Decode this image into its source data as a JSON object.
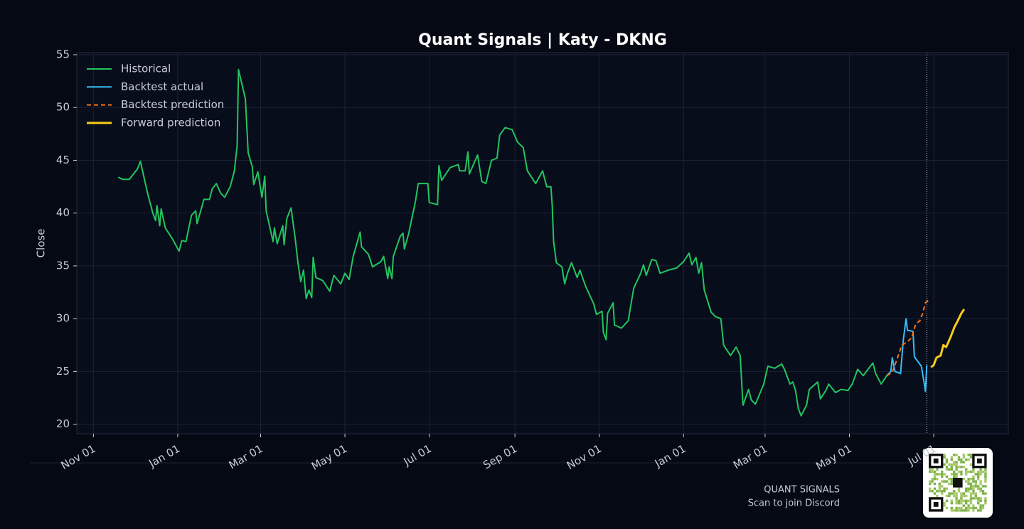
{
  "chart_data": {
    "type": "line",
    "title": "Quant Signals | Katy - DKNG",
    "y_label": "Close",
    "xlim": [
      -12,
      662
    ],
    "ylim": [
      19.1,
      55.2
    ],
    "xticks": [
      {
        "value": 0,
        "label": "Nov 01"
      },
      {
        "value": 61,
        "label": "Jan 01"
      },
      {
        "value": 121,
        "label": "Mar 01"
      },
      {
        "value": 182,
        "label": "May 01"
      },
      {
        "value": 243,
        "label": "Jul 01"
      },
      {
        "value": 305,
        "label": "Sep 01"
      },
      {
        "value": 366,
        "label": "Nov 01"
      },
      {
        "value": 427,
        "label": "Jan 01"
      },
      {
        "value": 486,
        "label": "Mar 01"
      },
      {
        "value": 547,
        "label": "May 01"
      },
      {
        "value": 608,
        "label": "Jul 01"
      }
    ],
    "yticks": [
      20,
      25,
      30,
      35,
      40,
      45,
      50,
      55
    ],
    "grid": true,
    "legend": "upper left",
    "vline": 603,
    "series": [
      {
        "name": "Historical",
        "color": "#22c55e",
        "linestyle": "solid",
        "x": [
          18,
          21,
          26,
          32,
          34,
          39,
          43,
          45,
          46,
          48,
          49,
          52,
          57,
          62,
          64,
          67,
          71,
          74,
          75,
          80,
          84,
          86,
          89,
          92,
          95,
          99,
          102,
          104,
          105,
          110,
          112,
          115,
          116,
          119,
          122,
          124,
          125,
          130,
          131,
          133,
          137,
          138,
          140,
          143,
          146,
          148,
          150,
          152,
          154,
          156,
          158,
          159,
          161,
          166,
          171,
          174,
          179,
          182,
          185,
          188,
          193,
          194,
          199,
          202,
          208,
          210,
          213,
          214,
          216,
          217,
          222,
          224,
          225,
          228,
          233,
          235,
          240,
          242,
          243,
          249,
          250,
          252,
          258,
          264,
          265,
          269,
          271,
          272,
          278,
          281,
          284,
          288,
          292,
          294,
          298,
          303,
          307,
          311,
          314,
          320,
          325,
          328,
          331,
          332,
          333,
          335,
          339,
          341,
          343,
          346,
          350,
          352,
          356,
          362,
          364,
          368,
          369,
          371,
          372,
          376,
          377,
          382,
          387,
          389,
          391,
          396,
          398,
          400,
          404,
          407,
          410,
          416,
          422,
          427,
          431,
          433,
          436,
          438,
          440,
          442,
          447,
          450,
          454,
          456,
          461,
          465,
          468,
          470,
          474,
          476,
          479,
          485,
          488,
          493,
          498,
          500,
          504,
          506,
          508,
          510,
          512,
          516,
          518,
          524,
          526,
          530,
          532,
          537,
          541,
          546,
          549,
          553,
          557,
          564,
          566,
          570,
          574
        ],
        "values": [
          43.4,
          43.2,
          43.2,
          44.2,
          44.9,
          42.0,
          40.0,
          39.3,
          40.7,
          38.8,
          40.4,
          38.6,
          37.6,
          36.4,
          37.4,
          37.3,
          39.8,
          40.2,
          39.0,
          41.3,
          41.3,
          42.3,
          42.8,
          41.9,
          41.5,
          42.5,
          44.0,
          46.4,
          53.6,
          50.8,
          45.7,
          44.4,
          42.7,
          43.9,
          41.5,
          43.5,
          40.2,
          37.3,
          38.6,
          37.1,
          38.8,
          37.0,
          39.5,
          40.5,
          37.6,
          35.3,
          33.5,
          34.6,
          31.9,
          32.7,
          32.0,
          35.8,
          33.9,
          33.6,
          32.6,
          34.1,
          33.3,
          34.3,
          33.7,
          35.9,
          38.2,
          36.8,
          36.1,
          34.9,
          35.4,
          35.9,
          33.8,
          34.9,
          33.8,
          35.9,
          37.8,
          38.1,
          36.6,
          38.0,
          41.1,
          42.8,
          42.8,
          42.8,
          41.0,
          40.8,
          44.5,
          43.1,
          44.3,
          44.6,
          44.0,
          44.0,
          45.8,
          43.7,
          45.5,
          43.0,
          42.8,
          45.0,
          45.2,
          47.4,
          48.1,
          47.9,
          46.7,
          46.2,
          44.0,
          42.8,
          44.0,
          42.5,
          42.5,
          40.7,
          37.3,
          35.3,
          34.9,
          33.3,
          34.3,
          35.3,
          33.9,
          34.6,
          33.1,
          31.4,
          30.4,
          30.7,
          28.7,
          28.0,
          30.5,
          31.5,
          29.4,
          29.1,
          29.8,
          31.4,
          32.9,
          34.3,
          35.1,
          34.1,
          35.6,
          35.5,
          34.3,
          34.6,
          34.8,
          35.4,
          36.2,
          35.1,
          35.8,
          34.3,
          35.3,
          32.7,
          30.6,
          30.2,
          30.0,
          27.5,
          26.5,
          27.3,
          26.5,
          21.8,
          23.3,
          22.3,
          21.9,
          23.8,
          25.5,
          25.3,
          25.7,
          25.2,
          23.8,
          24.0,
          23.2,
          21.5,
          20.8,
          21.8,
          23.3,
          24.0,
          22.4,
          23.2,
          23.8,
          23.0,
          23.3,
          23.2,
          23.8,
          25.2,
          24.6,
          25.8,
          24.8,
          23.8,
          24.6
        ]
      },
      {
        "name": "Backtest actual",
        "color": "#38bdf8",
        "linestyle": "solid",
        "x": [
          574,
          577,
          578,
          580,
          584,
          586,
          588,
          589,
          593,
          594,
          599,
          601,
          602,
          603
        ],
        "values": [
          24.6,
          25.0,
          26.3,
          25.0,
          24.8,
          28.0,
          30.0,
          28.9,
          28.8,
          26.4,
          25.5,
          24.0,
          23.1,
          25.6
        ]
      },
      {
        "name": "Backtest prediction",
        "color": "#f97316",
        "linestyle": "dashed",
        "x": [
          574,
          578,
          581,
          585,
          589,
          592,
          595,
          598,
          600,
          602,
          604
        ],
        "values": [
          24.6,
          24.9,
          26.0,
          27.5,
          27.8,
          28.2,
          29.5,
          29.8,
          30.5,
          31.5,
          31.7
        ]
      },
      {
        "name": "Forward prediction",
        "color": "#facc15",
        "linestyle": "solid",
        "x": [
          606,
          608,
          610,
          613,
          615,
          617,
          620,
          623,
          625,
          628,
          630
        ],
        "values": [
          25.4,
          25.6,
          26.3,
          26.5,
          27.5,
          27.3,
          28.2,
          29.2,
          29.7,
          30.5,
          30.9
        ]
      }
    ]
  },
  "footer": {
    "brand": "QUANT SIGNALS",
    "caption": "Scan to join Discord"
  }
}
